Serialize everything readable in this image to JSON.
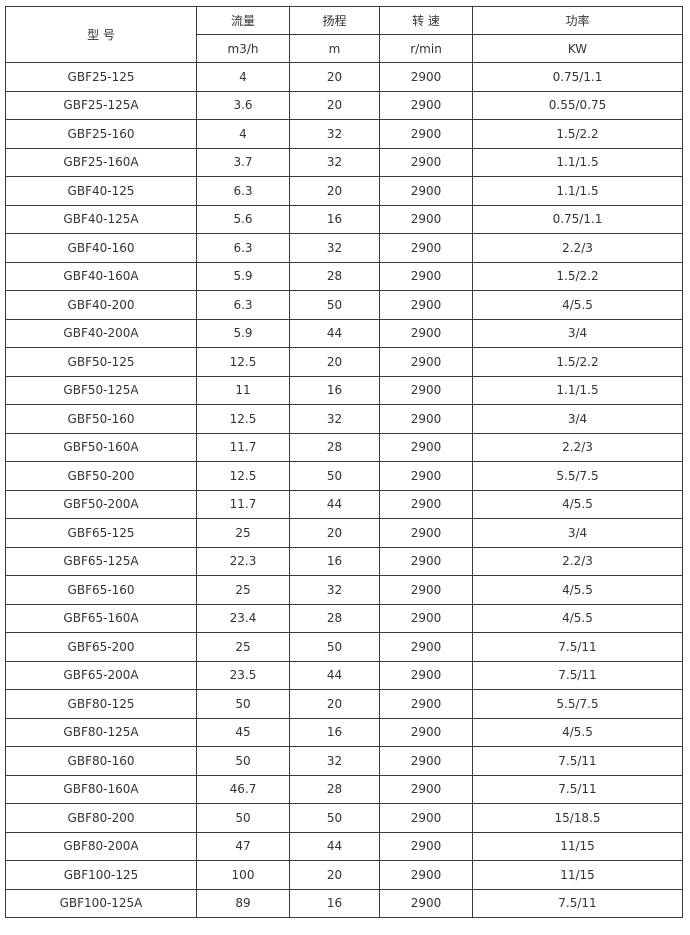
{
  "header": {
    "model": "型  号",
    "columns": [
      {
        "label": "流量",
        "unit": "m3/h"
      },
      {
        "label": "扬程",
        "unit": "m"
      },
      {
        "label": "转 速",
        "unit": "r/min"
      },
      {
        "label": "功率",
        "unit": "KW"
      }
    ]
  },
  "rows": [
    [
      "GBF25-125",
      "4",
      "20",
      "2900",
      "0.75/1.1"
    ],
    [
      "GBF25-125A",
      "3.6",
      "20",
      "2900",
      "0.55/0.75"
    ],
    [
      "GBF25-160",
      "4",
      "32",
      "2900",
      "1.5/2.2"
    ],
    [
      "GBF25-160A",
      "3.7",
      "32",
      "2900",
      "1.1/1.5"
    ],
    [
      "GBF40-125",
      "6.3",
      "20",
      "2900",
      "1.1/1.5"
    ],
    [
      "GBF40-125A",
      "5.6",
      "16",
      "2900",
      "0.75/1.1"
    ],
    [
      "GBF40-160",
      "6.3",
      "32",
      "2900",
      "2.2/3"
    ],
    [
      "GBF40-160A",
      "5.9",
      "28",
      "2900",
      "1.5/2.2"
    ],
    [
      "GBF40-200",
      "6.3",
      "50",
      "2900",
      "4/5.5"
    ],
    [
      "GBF40-200A",
      "5.9",
      "44",
      "2900",
      "3/4"
    ],
    [
      "GBF50-125",
      "12.5",
      "20",
      "2900",
      "1.5/2.2"
    ],
    [
      "GBF50-125A",
      "11",
      "16",
      "2900",
      "1.1/1.5"
    ],
    [
      "GBF50-160",
      "12.5",
      "32",
      "2900",
      "3/4"
    ],
    [
      "GBF50-160A",
      "11.7",
      "28",
      "2900",
      "2.2/3"
    ],
    [
      "GBF50-200",
      "12.5",
      "50",
      "2900",
      "5.5/7.5"
    ],
    [
      "GBF50-200A",
      "11.7",
      "44",
      "2900",
      "4/5.5"
    ],
    [
      "GBF65-125",
      "25",
      "20",
      "2900",
      "3/4"
    ],
    [
      "GBF65-125A",
      "22.3",
      "16",
      "2900",
      "2.2/3"
    ],
    [
      "GBF65-160",
      "25",
      "32",
      "2900",
      "4/5.5"
    ],
    [
      "GBF65-160A",
      "23.4",
      "28",
      "2900",
      "4/5.5"
    ],
    [
      "GBF65-200",
      "25",
      "50",
      "2900",
      "7.5/11"
    ],
    [
      "GBF65-200A",
      "23.5",
      "44",
      "2900",
      "7.5/11"
    ],
    [
      "GBF80-125",
      "50",
      "20",
      "2900",
      "5.5/7.5"
    ],
    [
      "GBF80-125A",
      "45",
      "16",
      "2900",
      "4/5.5"
    ],
    [
      "GBF80-160",
      "50",
      "32",
      "2900",
      "7.5/11"
    ],
    [
      "GBF80-160A",
      "46.7",
      "28",
      "2900",
      "7.5/11"
    ],
    [
      "GBF80-200",
      "50",
      "50",
      "2900",
      "15/18.5"
    ],
    [
      "GBF80-200A",
      "47",
      "44",
      "2900",
      "11/15"
    ],
    [
      "GBF100-125",
      "100",
      "20",
      "2900",
      "11/15"
    ],
    [
      "GBF100-125A",
      "89",
      "16",
      "2900",
      "7.5/11"
    ]
  ]
}
